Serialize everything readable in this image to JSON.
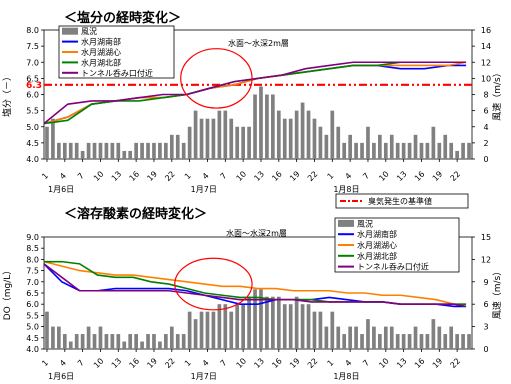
{
  "chart_data": [
    {
      "type": "line",
      "title": "＜塩分の経時変化＞",
      "annotation": "水面～水深2m層",
      "ylabel": "塩分（－）",
      "y2label": "風速（m/s）",
      "ylim": [
        4.0,
        8.0
      ],
      "y2lim": [
        0,
        16
      ],
      "yticks": [
        "4.0",
        "4.5",
        "5.0",
        "5.5",
        "6.0",
        "6.5",
        "7.0",
        "7.5",
        "8.0"
      ],
      "y2ticks": [
        "0",
        "2",
        "4",
        "6",
        "8",
        "10",
        "12",
        "14",
        "16"
      ],
      "x_tick_labels": [
        "1",
        "4",
        "7",
        "10",
        "13",
        "16",
        "19",
        "22",
        "1",
        "4",
        "7",
        "10",
        "13",
        "16",
        "19",
        "22",
        "1",
        "4",
        "7",
        "10",
        "13",
        "16",
        "19",
        "22"
      ],
      "x_tick_hours": [
        0,
        3,
        6,
        9,
        12,
        15,
        18,
        21,
        24,
        27,
        30,
        33,
        36,
        39,
        42,
        45,
        48,
        51,
        54,
        57,
        60,
        63,
        66,
        69
      ],
      "x_max_hour": 72,
      "date_labels": [
        {
          "text": "1月6日",
          "hour": 0
        },
        {
          "text": "1月7日",
          "hour": 24
        },
        {
          "text": "1月8日",
          "hour": 48
        }
      ],
      "reference": {
        "value": 6.3,
        "label": "6.3",
        "name": "臭気発生の基準値",
        "color": "#ff0000"
      },
      "highlight": {
        "from_hour": 23,
        "to_hour": 35,
        "center_value": 6.5,
        "color": "#ff0000"
      },
      "legend": [
        {
          "name": "風況",
          "kind": "bar",
          "color": "#808080"
        },
        {
          "name": "水月湖南部",
          "kind": "line",
          "color": "#0000ff"
        },
        {
          "name": "水月湖湖心",
          "kind": "line",
          "color": "#ff8000"
        },
        {
          "name": "水月湖北部",
          "kind": "line",
          "color": "#008000"
        },
        {
          "name": "トンネル呑み口付近",
          "kind": "line",
          "color": "#800080"
        }
      ],
      "wind": {
        "name": "風況",
        "color": "#808080",
        "axis": "y2",
        "step_hours": 1,
        "values": [
          4,
          5,
          2,
          2,
          2,
          2,
          1,
          2,
          2,
          2,
          2,
          2,
          2,
          1,
          1,
          2,
          2,
          2,
          2,
          2,
          2,
          3,
          3,
          2,
          4,
          6,
          5,
          5,
          5,
          6,
          6,
          5,
          4,
          4,
          4,
          8,
          9,
          8,
          8,
          6,
          5,
          5,
          6,
          7,
          6,
          5,
          4,
          3,
          6,
          4,
          2,
          3,
          2,
          2,
          4,
          2,
          3,
          2,
          3,
          2,
          2,
          2,
          3,
          2,
          2,
          4,
          2,
          3,
          2,
          1,
          2,
          2
        ]
      },
      "series": [
        {
          "name": "水月湖南部",
          "color": "#0000ff",
          "x": [
            0,
            4,
            8,
            12,
            16,
            20,
            24,
            28,
            32,
            36,
            40,
            44,
            48,
            52,
            56,
            60,
            64,
            68,
            71
          ],
          "values": [
            5.1,
            5.3,
            5.7,
            5.8,
            5.9,
            5.9,
            6.0,
            6.2,
            6.3,
            6.5,
            6.6,
            6.7,
            6.8,
            6.9,
            6.9,
            6.8,
            6.8,
            6.9,
            6.9
          ]
        },
        {
          "name": "水月湖湖心",
          "color": "#ff8000",
          "x": [
            0,
            4,
            8,
            12,
            16,
            20,
            24,
            28,
            32,
            36,
            40,
            44,
            48,
            52,
            56,
            60,
            64,
            68,
            71
          ],
          "values": [
            5.1,
            5.3,
            5.7,
            5.8,
            5.9,
            5.9,
            6.0,
            6.2,
            6.3,
            6.5,
            6.6,
            6.7,
            6.8,
            6.9,
            6.9,
            6.9,
            6.9,
            6.9,
            7.0
          ]
        },
        {
          "name": "水月湖北部",
          "color": "#008000",
          "x": [
            0,
            4,
            8,
            12,
            16,
            20,
            24,
            28,
            32,
            36,
            40,
            44,
            48,
            52,
            56,
            60,
            64,
            68,
            71
          ],
          "values": [
            5.1,
            5.2,
            5.7,
            5.8,
            5.8,
            5.9,
            6.0,
            6.2,
            6.4,
            6.5,
            6.6,
            6.7,
            6.8,
            6.9,
            6.9,
            7.0,
            7.0,
            7.0,
            7.0
          ]
        },
        {
          "name": "トンネル呑み口付近",
          "color": "#800080",
          "x": [
            0,
            4,
            8,
            12,
            16,
            20,
            24,
            28,
            32,
            36,
            40,
            44,
            48,
            52,
            56,
            60,
            64,
            68,
            71
          ],
          "values": [
            5.1,
            5.7,
            5.8,
            5.8,
            5.9,
            6.0,
            6.0,
            6.2,
            6.4,
            6.5,
            6.6,
            6.8,
            6.9,
            7.0,
            7.0,
            7.0,
            7.0,
            7.0,
            7.0
          ]
        }
      ]
    },
    {
      "type": "line",
      "title": "＜溶存酸素の経時変化＞",
      "annotation": "水面～水深2m層",
      "ylabel": "DO（mg/L）",
      "y2label": "風速（m/s）",
      "ylim": [
        4.0,
        9.0
      ],
      "y2lim": [
        0,
        15
      ],
      "yticks": [
        "4.0",
        "4.5",
        "5.0",
        "5.5",
        "6.0",
        "6.5",
        "7.0",
        "7.5",
        "8.0",
        "8.5",
        "9.0"
      ],
      "y2ticks": [
        "0",
        "3",
        "6",
        "9",
        "12",
        "15"
      ],
      "x_tick_labels": [
        "1",
        "4",
        "7",
        "10",
        "13",
        "16",
        "19",
        "22",
        "1",
        "4",
        "7",
        "10",
        "13",
        "16",
        "19",
        "22",
        "1",
        "4",
        "7",
        "10",
        "13",
        "16",
        "19",
        "22"
      ],
      "x_tick_hours": [
        0,
        3,
        6,
        9,
        12,
        15,
        18,
        21,
        24,
        27,
        30,
        33,
        36,
        39,
        42,
        45,
        48,
        51,
        54,
        57,
        60,
        63,
        66,
        69
      ],
      "x_max_hour": 72,
      "date_labels": [
        {
          "text": "1月6日",
          "hour": 0
        },
        {
          "text": "1月7日",
          "hour": 24
        },
        {
          "text": "1月8日",
          "hour": 48
        }
      ],
      "highlight": {
        "from_hour": 22,
        "to_hour": 35,
        "center_value": 6.9,
        "color": "#ff0000"
      },
      "legend": [
        {
          "name": "風況",
          "kind": "bar",
          "color": "#808080"
        },
        {
          "name": "水月湖南部",
          "kind": "line",
          "color": "#0000ff"
        },
        {
          "name": "水月湖湖心",
          "kind": "line",
          "color": "#ff8000"
        },
        {
          "name": "水月湖北部",
          "kind": "line",
          "color": "#008000"
        },
        {
          "name": "トンネル呑み口付近",
          "kind": "line",
          "color": "#800080"
        }
      ],
      "wind": {
        "name": "風況",
        "color": "#808080",
        "axis": "y2",
        "step_hours": 1,
        "values": [
          5,
          3,
          3,
          2,
          1,
          2,
          2,
          3,
          2,
          3,
          2,
          2,
          2,
          1,
          2,
          2,
          1,
          2,
          2,
          1,
          2,
          3,
          2,
          2,
          5,
          4,
          5,
          5,
          5,
          6,
          6,
          5,
          6,
          6,
          7,
          8,
          8,
          7,
          7,
          7,
          6,
          6,
          7,
          6,
          6,
          5,
          5,
          3,
          5,
          3,
          2,
          3,
          3,
          2,
          4,
          3,
          2,
          3,
          3,
          2,
          2,
          2,
          3,
          2,
          2,
          4,
          3,
          2,
          3,
          2,
          2,
          2
        ]
      },
      "series": [
        {
          "name": "水月湖南部",
          "color": "#0000ff",
          "x": [
            0,
            3,
            6,
            9,
            12,
            15,
            18,
            21,
            24,
            27,
            30,
            33,
            36,
            39,
            42,
            45,
            48,
            51,
            54,
            57,
            60,
            63,
            66,
            69,
            71
          ],
          "values": [
            7.8,
            7.0,
            6.6,
            6.6,
            6.7,
            6.7,
            6.7,
            6.7,
            6.6,
            6.4,
            6.2,
            6.0,
            6.0,
            6.2,
            6.2,
            6.2,
            6.3,
            6.2,
            6.1,
            6.1,
            6.0,
            6.0,
            6.0,
            5.9,
            5.9
          ]
        },
        {
          "name": "水月湖湖心",
          "color": "#ff8000",
          "x": [
            0,
            3,
            6,
            9,
            12,
            15,
            18,
            21,
            24,
            27,
            30,
            33,
            36,
            39,
            42,
            45,
            48,
            51,
            54,
            57,
            60,
            63,
            66,
            69,
            71
          ],
          "values": [
            7.9,
            7.7,
            7.5,
            7.4,
            7.3,
            7.3,
            7.2,
            7.1,
            7.0,
            6.9,
            6.8,
            6.8,
            6.7,
            6.7,
            6.6,
            6.6,
            6.6,
            6.5,
            6.5,
            6.4,
            6.4,
            6.3,
            6.2,
            6.0,
            6.0
          ]
        },
        {
          "name": "水月湖北部",
          "color": "#008000",
          "x": [
            0,
            3,
            6,
            9,
            12,
            15,
            18,
            21,
            24,
            27,
            30,
            33,
            36,
            39,
            42,
            45,
            48,
            51,
            54,
            57,
            60,
            63,
            66,
            69,
            71
          ],
          "values": [
            7.9,
            7.9,
            7.8,
            7.3,
            7.2,
            7.2,
            7.0,
            6.9,
            6.7,
            6.5,
            6.4,
            6.3,
            6.3,
            6.2,
            6.2,
            6.2,
            6.1,
            6.1,
            6.1,
            6.1,
            6.0,
            6.0,
            6.0,
            6.0,
            6.0
          ]
        },
        {
          "name": "トンネル呑み口付近",
          "color": "#800080",
          "x": [
            0,
            3,
            6,
            9,
            12,
            15,
            18,
            21,
            24,
            27,
            30,
            33,
            36,
            39,
            42,
            45,
            48,
            51,
            54,
            57,
            60,
            63,
            66,
            69,
            71
          ],
          "values": [
            7.8,
            7.2,
            6.6,
            6.6,
            6.6,
            6.6,
            6.6,
            6.6,
            6.5,
            6.4,
            6.3,
            6.2,
            6.2,
            6.2,
            6.2,
            6.1,
            6.1,
            6.1,
            6.1,
            6.1,
            6.0,
            6.0,
            6.0,
            6.0,
            5.9
          ]
        }
      ]
    }
  ]
}
